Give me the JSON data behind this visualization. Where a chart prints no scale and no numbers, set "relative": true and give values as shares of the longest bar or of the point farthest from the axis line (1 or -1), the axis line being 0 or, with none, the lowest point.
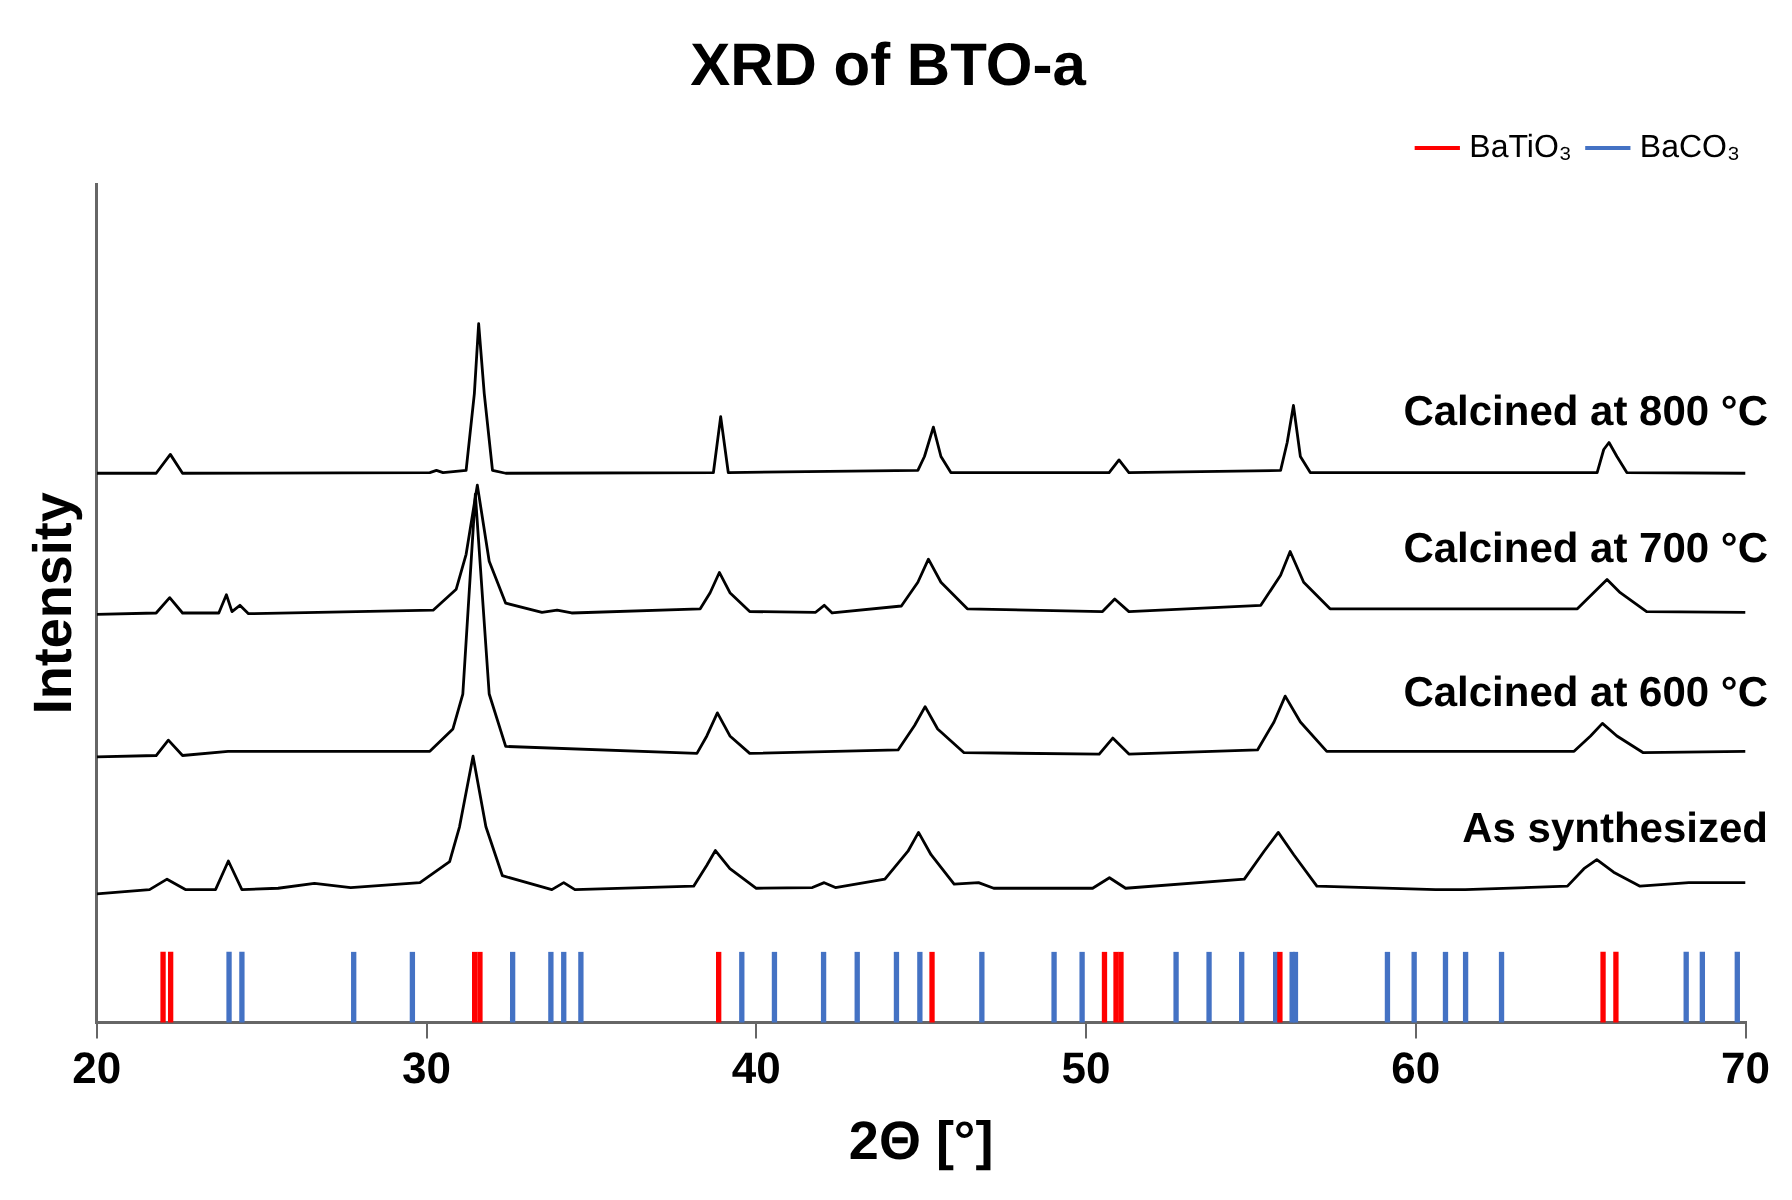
{
  "chart_data": {
    "type": "line",
    "title": "XRD of BTO-a",
    "xlabel": "2Θ [°]",
    "ylabel": "Intensity",
    "relative": true,
    "xlim": [
      20,
      70
    ],
    "xticks": [
      20,
      30,
      40,
      50,
      60,
      70
    ],
    "legend": "top right",
    "marker": "none",
    "series": [
      {
        "name": "Calcined at 800 °C",
        "color": "#000000",
        "x": [
          20,
          21.8,
          22.23,
          22.6,
          30.1,
          30.3,
          30.5,
          31.2,
          31.45,
          31.58,
          31.75,
          32.0,
          32.4,
          38.7,
          38.92,
          39.15,
          44.9,
          45.1,
          45.37,
          45.6,
          45.9,
          50.7,
          51.0,
          51.3,
          55.9,
          56.1,
          56.29,
          56.5,
          56.8,
          65.5,
          65.7,
          65.86,
          66.1,
          66.4,
          70
        ],
        "values": [
          0.786,
          0.786,
          0.813,
          0.786,
          0.787,
          0.79,
          0.787,
          0.79,
          0.9,
          1.0,
          0.9,
          0.79,
          0.786,
          0.787,
          0.867,
          0.787,
          0.79,
          0.81,
          0.852,
          0.81,
          0.787,
          0.787,
          0.805,
          0.787,
          0.79,
          0.83,
          0.883,
          0.81,
          0.787,
          0.787,
          0.82,
          0.83,
          0.81,
          0.787,
          0.786
        ]
      },
      {
        "name": "Calcined at 700 °C",
        "color": "#000000",
        "x": [
          20,
          21.8,
          22.21,
          22.6,
          23.7,
          23.93,
          24.1,
          24.34,
          24.6,
          30.2,
          30.9,
          31.2,
          31.54,
          31.9,
          32.4,
          33.5,
          33.96,
          34.4,
          38.3,
          38.6,
          38.88,
          39.2,
          39.8,
          41.8,
          42.06,
          42.3,
          44.4,
          44.9,
          45.22,
          45.6,
          46.4,
          50.5,
          50.87,
          51.3,
          55.3,
          55.9,
          56.19,
          56.6,
          57.4,
          64.9,
          65.5,
          65.8,
          66.2,
          67.0,
          70
        ],
        "values": [
          0.584,
          0.586,
          0.608,
          0.586,
          0.586,
          0.612,
          0.588,
          0.597,
          0.585,
          0.59,
          0.62,
          0.67,
          0.769,
          0.66,
          0.6,
          0.587,
          0.59,
          0.586,
          0.592,
          0.615,
          0.644,
          0.615,
          0.588,
          0.587,
          0.597,
          0.586,
          0.596,
          0.63,
          0.663,
          0.63,
          0.592,
          0.588,
          0.606,
          0.588,
          0.597,
          0.64,
          0.674,
          0.63,
          0.592,
          0.592,
          0.62,
          0.634,
          0.615,
          0.588,
          0.587
        ]
      },
      {
        "name": "Calcined at 600 °C",
        "color": "#000000",
        "x": [
          20,
          21.8,
          22.17,
          22.6,
          23.98,
          30.1,
          30.8,
          31.1,
          31.48,
          31.9,
          32.4,
          38.2,
          38.5,
          38.82,
          39.2,
          39.8,
          44.3,
          44.8,
          45.12,
          45.5,
          46.3,
          50.4,
          50.81,
          51.3,
          55.2,
          55.7,
          56.04,
          56.5,
          57.3,
          64.8,
          65.3,
          65.66,
          66.1,
          66.9,
          70
        ],
        "values": [
          0.38,
          0.382,
          0.404,
          0.382,
          0.388,
          0.388,
          0.42,
          0.47,
          0.756,
          0.47,
          0.395,
          0.385,
          0.41,
          0.443,
          0.41,
          0.385,
          0.39,
          0.425,
          0.452,
          0.42,
          0.386,
          0.384,
          0.407,
          0.384,
          0.39,
          0.43,
          0.467,
          0.43,
          0.388,
          0.388,
          0.41,
          0.428,
          0.41,
          0.386,
          0.388
        ]
      },
      {
        "name": "As synthesized",
        "color": "#000000",
        "x": [
          20,
          21.6,
          22.13,
          22.7,
          23.6,
          23.99,
          24.4,
          25.5,
          26.6,
          27.7,
          29.8,
          30.7,
          31.0,
          31.41,
          31.8,
          32.3,
          33.8,
          34.16,
          34.5,
          38.1,
          38.5,
          38.76,
          39.2,
          40.0,
          41.7,
          42.06,
          42.4,
          43.9,
          44.6,
          44.92,
          45.3,
          46.0,
          46.74,
          47.2,
          50.2,
          50.71,
          51.2,
          54.8,
          55.4,
          55.83,
          56.3,
          57.0,
          60.6,
          61.05,
          61.5,
          64.6,
          65.1,
          65.49,
          66.0,
          66.8,
          68.28,
          70
        ],
        "values": [
          0.184,
          0.19,
          0.205,
          0.19,
          0.19,
          0.231,
          0.19,
          0.192,
          0.199,
          0.193,
          0.2,
          0.23,
          0.28,
          0.381,
          0.28,
          0.21,
          0.19,
          0.2,
          0.19,
          0.195,
          0.225,
          0.246,
          0.22,
          0.192,
          0.193,
          0.2,
          0.193,
          0.205,
          0.245,
          0.272,
          0.24,
          0.198,
          0.2,
          0.192,
          0.192,
          0.207,
          0.192,
          0.205,
          0.245,
          0.272,
          0.24,
          0.195,
          0.19,
          0.19,
          0.19,
          0.195,
          0.22,
          0.233,
          0.215,
          0.195,
          0.2,
          0.2
        ]
      },
      {
        "name": "BaTiO₃",
        "type": "bar",
        "color": "#ff0000",
        "x": [
          22.07,
          22.3,
          31.52,
          31.68,
          38.92,
          45.39,
          50.62,
          50.97,
          51.12,
          55.94,
          65.74,
          66.13
        ],
        "values": [
          0.1,
          0.1,
          0.1,
          0.1,
          0.1,
          0.1,
          0.1,
          0.1,
          0.1,
          0.1,
          0.1,
          0.1
        ]
      },
      {
        "name": "BaCO₃",
        "type": "bar",
        "color": "#4472c4",
        "x": [
          23.95,
          24.34,
          27.73,
          29.51,
          32.55,
          33.71,
          34.1,
          34.62,
          39.5,
          40.49,
          41.98,
          43.0,
          44.19,
          44.9,
          46.78,
          48.97,
          49.82,
          52.67,
          53.67,
          54.66,
          55.69,
          56.19,
          56.29,
          59.08,
          59.89,
          60.84,
          61.45,
          62.54,
          68.14,
          68.63,
          69.69
        ],
        "values": [
          0.1,
          0.1,
          0.1,
          0.1,
          0.1,
          0.1,
          0.1,
          0.1,
          0.1,
          0.1,
          0.1,
          0.1,
          0.1,
          0.1,
          0.1,
          0.1,
          0.1,
          0.1,
          0.1,
          0.1,
          0.1,
          0.1,
          0.1,
          0.1,
          0.1,
          0.1,
          0.1,
          0.1,
          0.1,
          0.1,
          0.1
        ]
      }
    ]
  }
}
